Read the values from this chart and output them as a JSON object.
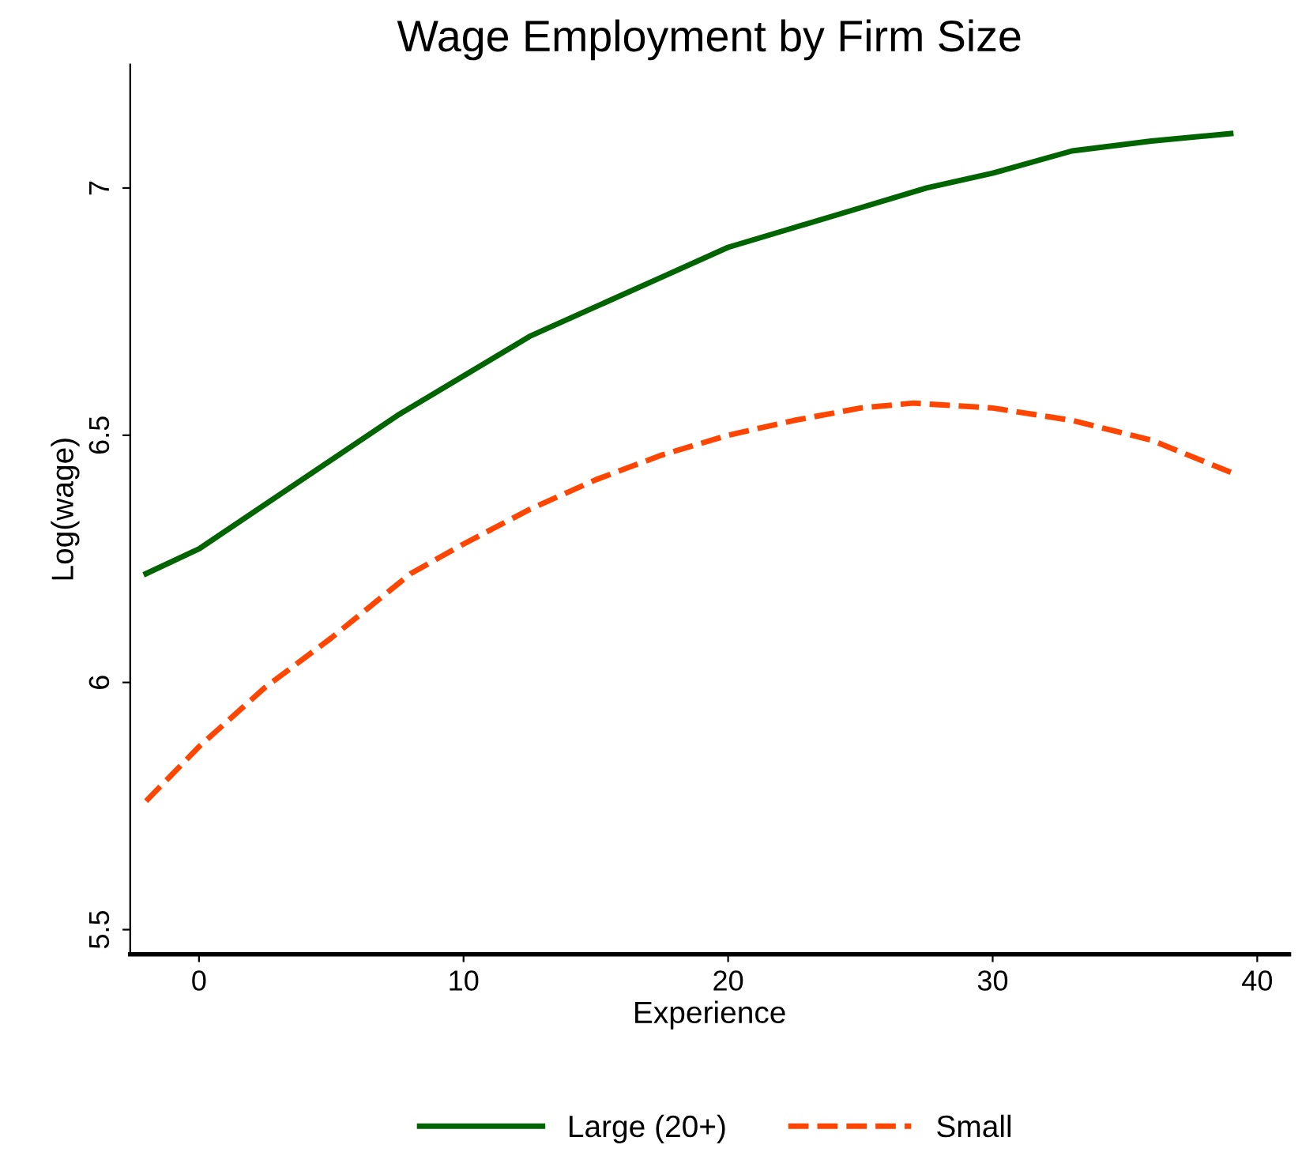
{
  "chart_data": {
    "type": "line",
    "title": "Wage Employment by Firm Size",
    "xlabel": "Experience",
    "ylabel": "Log(wage)",
    "xlim": [
      -2.6,
      41.2
    ],
    "ylim": [
      5.45,
      7.25
    ],
    "xticks": [
      0,
      10,
      20,
      30,
      40
    ],
    "yticks": [
      5.5,
      6,
      6.5,
      7
    ],
    "grid": false,
    "legend": "bottom",
    "series": [
      {
        "name": "Large (20+)",
        "color": "#006400",
        "line_style": "solid",
        "x": [
          -2,
          0,
          2.5,
          5,
          7.5,
          10,
          12.5,
          15,
          17.5,
          20,
          22.5,
          25,
          27.5,
          30,
          33,
          36,
          39
        ],
        "values": [
          6.22,
          6.27,
          6.36,
          6.45,
          6.54,
          6.62,
          6.7,
          6.76,
          6.82,
          6.88,
          6.92,
          6.96,
          7.0,
          7.03,
          7.075,
          7.095,
          7.11
        ]
      },
      {
        "name": "Small",
        "color": "#ff4500",
        "line_style": "dashed",
        "x": [
          -2,
          0,
          2.5,
          5,
          8,
          10,
          12.5,
          15,
          17.5,
          20,
          22.5,
          25,
          27,
          30,
          33,
          36,
          39
        ],
        "values": [
          5.76,
          5.87,
          5.99,
          6.09,
          6.22,
          6.28,
          6.35,
          6.41,
          6.46,
          6.5,
          6.53,
          6.555,
          6.565,
          6.555,
          6.53,
          6.49,
          6.425
        ]
      }
    ]
  }
}
